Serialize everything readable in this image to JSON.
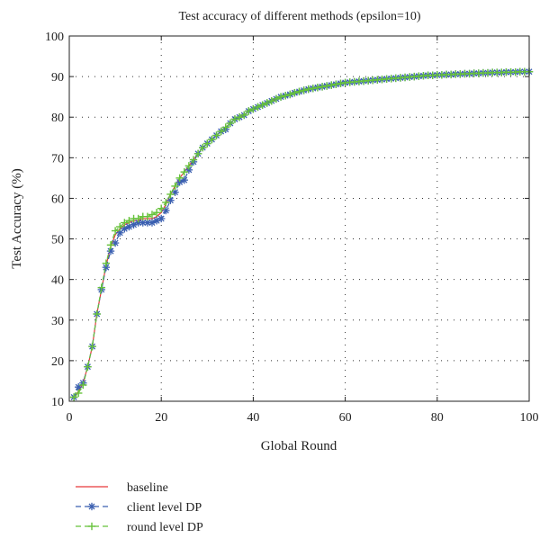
{
  "chart_data": {
    "type": "line",
    "title": "Test accuracy of different methods (epsilon=10)",
    "xlabel": "Global Round",
    "ylabel": "Test Accuracy (%)",
    "xlim": [
      0,
      100
    ],
    "ylim": [
      10,
      100
    ],
    "xticks": [
      "0",
      "20",
      "40",
      "60",
      "80",
      "100"
    ],
    "yticks": [
      "10",
      "20",
      "30",
      "40",
      "50",
      "60",
      "70",
      "80",
      "90",
      "100"
    ],
    "grid": true,
    "legend_position": "bottom-left",
    "x": [
      1,
      2,
      3,
      4,
      5,
      6,
      7,
      8,
      9,
      10,
      11,
      12,
      13,
      14,
      15,
      16,
      17,
      18,
      19,
      20,
      21,
      22,
      23,
      24,
      25,
      26,
      27,
      28,
      29,
      30,
      31,
      32,
      33,
      34,
      35,
      36,
      37,
      38,
      39,
      40,
      41,
      42,
      43,
      44,
      45,
      46,
      47,
      48,
      49,
      50,
      51,
      52,
      53,
      54,
      55,
      56,
      57,
      58,
      59,
      60,
      61,
      62,
      63,
      64,
      65,
      66,
      67,
      68,
      69,
      70,
      71,
      72,
      73,
      74,
      75,
      76,
      77,
      78,
      79,
      80,
      81,
      82,
      83,
      84,
      85,
      86,
      87,
      88,
      89,
      90,
      91,
      92,
      93,
      94,
      95,
      96,
      97,
      98,
      99,
      100
    ],
    "series": [
      {
        "name": "baseline",
        "color": "#e8393a",
        "style": "solid",
        "marker": "none",
        "values": [
          10.5,
          12.5,
          14.5,
          18.5,
          23.5,
          31.5,
          37.5,
          43.5,
          48.0,
          51.0,
          52.5,
          53.5,
          54.0,
          54.5,
          54.5,
          55.0,
          55.0,
          55.0,
          55.5,
          56.5,
          58.5,
          61.0,
          63.0,
          65.0,
          66.5,
          68.0,
          69.5,
          71.0,
          72.5,
          73.5,
          74.5,
          75.5,
          76.5,
          77.5,
          78.5,
          79.5,
          80.0,
          80.5,
          81.5,
          82.0,
          82.5,
          83.0,
          83.5,
          84.0,
          84.5,
          85.0,
          85.3,
          85.6,
          86.0,
          86.3,
          86.6,
          86.9,
          87.1,
          87.3,
          87.5,
          87.7,
          87.9,
          88.1,
          88.3,
          88.5,
          88.6,
          88.7,
          88.8,
          88.9,
          89.0,
          89.1,
          89.2,
          89.3,
          89.4,
          89.5,
          89.6,
          89.7,
          89.8,
          89.9,
          90.0,
          90.1,
          90.2,
          90.3,
          90.3,
          90.4,
          90.4,
          90.5,
          90.5,
          90.6,
          90.6,
          90.7,
          90.7,
          90.8,
          90.8,
          90.9,
          90.9,
          91.0,
          91.0,
          91.0,
          91.1,
          91.1,
          91.1,
          91.2,
          91.2,
          91.2
        ]
      },
      {
        "name": "client level DP",
        "color": "#3a5fb0",
        "style": "dashed",
        "marker": "asterisk",
        "values": [
          11.0,
          13.5,
          14.5,
          18.5,
          23.5,
          31.5,
          37.5,
          43.0,
          47.0,
          49.0,
          51.5,
          52.5,
          53.0,
          53.5,
          54.0,
          54.0,
          54.0,
          54.0,
          54.5,
          55.0,
          57.0,
          59.5,
          61.5,
          64.0,
          64.5,
          67.0,
          69.0,
          71.0,
          72.5,
          73.5,
          74.5,
          75.5,
          76.5,
          77.0,
          78.5,
          79.5,
          80.0,
          80.5,
          81.5,
          82.0,
          82.5,
          83.0,
          83.5,
          84.0,
          84.5,
          85.0,
          85.3,
          85.6,
          86.0,
          86.3,
          86.6,
          86.9,
          87.1,
          87.3,
          87.5,
          87.7,
          87.9,
          88.1,
          88.3,
          88.5,
          88.6,
          88.7,
          88.8,
          88.9,
          89.0,
          89.1,
          89.2,
          89.3,
          89.4,
          89.5,
          89.6,
          89.7,
          89.8,
          89.9,
          90.0,
          90.1,
          90.2,
          90.3,
          90.3,
          90.4,
          90.4,
          90.5,
          90.5,
          90.6,
          90.6,
          90.7,
          90.7,
          90.8,
          90.8,
          90.9,
          90.9,
          91.0,
          91.0,
          91.0,
          91.1,
          91.1,
          91.1,
          91.2,
          91.2,
          91.2
        ]
      },
      {
        "name": "round level DP",
        "color": "#66c23a",
        "style": "dashed",
        "marker": "plus",
        "values": [
          11.0,
          12.0,
          14.0,
          18.5,
          23.5,
          31.5,
          38.0,
          44.0,
          48.5,
          52.0,
          53.0,
          54.0,
          54.5,
          55.0,
          55.0,
          55.5,
          55.5,
          56.0,
          56.5,
          57.5,
          59.0,
          61.0,
          63.0,
          65.0,
          66.5,
          68.0,
          69.5,
          71.0,
          72.5,
          73.5,
          74.5,
          75.5,
          76.5,
          77.5,
          78.5,
          79.5,
          80.0,
          80.5,
          81.5,
          82.0,
          82.5,
          83.0,
          83.5,
          84.0,
          84.5,
          85.0,
          85.3,
          85.6,
          86.0,
          86.3,
          86.6,
          86.9,
          87.1,
          87.3,
          87.5,
          87.7,
          87.9,
          88.1,
          88.3,
          88.5,
          88.6,
          88.7,
          88.8,
          88.9,
          89.0,
          89.1,
          89.2,
          89.3,
          89.4,
          89.5,
          89.6,
          89.7,
          89.8,
          89.9,
          90.0,
          90.1,
          90.2,
          90.3,
          90.3,
          90.4,
          90.4,
          90.5,
          90.5,
          90.6,
          90.6,
          90.7,
          90.7,
          90.8,
          90.8,
          90.9,
          90.9,
          91.0,
          91.0,
          91.0,
          91.1,
          91.1,
          91.1,
          91.2,
          91.2,
          91.2
        ]
      }
    ]
  }
}
